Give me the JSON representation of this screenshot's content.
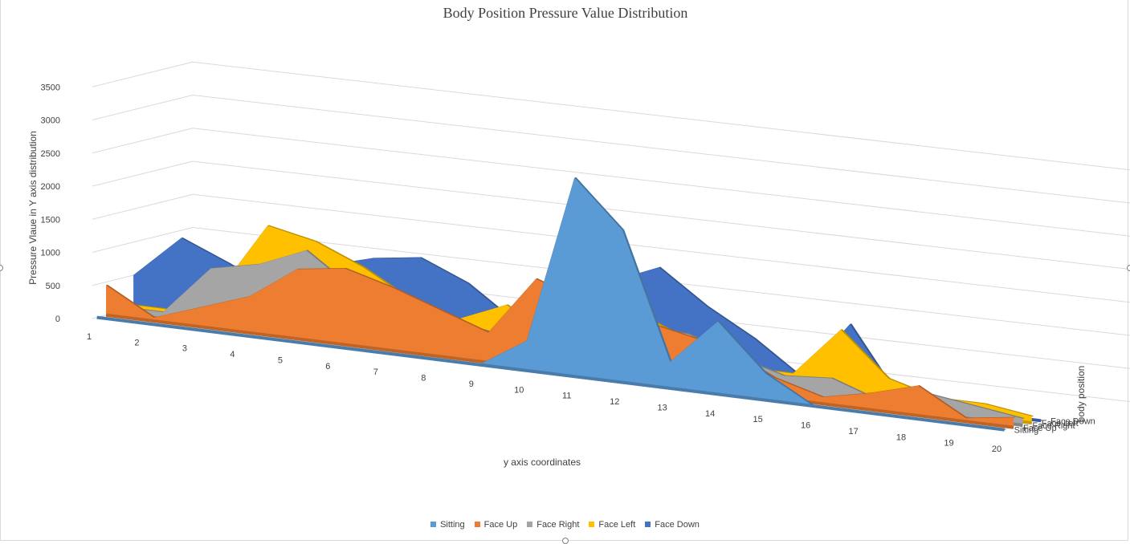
{
  "chart_data": {
    "type": "area",
    "variant": "3d-area",
    "title": "Body Position Pressure Value Distribution",
    "xlabel": "y axis coordinates",
    "ylabel": "Pressure Vlaue in Y axis distribution",
    "zlabel": "body position",
    "categories": [
      "1",
      "2",
      "3",
      "4",
      "5",
      "6",
      "7",
      "8",
      "9",
      "10",
      "11",
      "12",
      "13",
      "14",
      "15",
      "16",
      "17",
      "18",
      "19",
      "20"
    ],
    "yticks": [
      "0",
      "500",
      "1000",
      "1500",
      "2000",
      "2500",
      "3000",
      "3500"
    ],
    "ylim": [
      0,
      3500
    ],
    "grid": true,
    "legend_position": "bottom",
    "series": [
      {
        "name": "Sitting",
        "color": "#5b9bd5",
        "values": [
          0,
          0,
          0,
          0,
          0,
          0,
          0,
          0,
          0,
          450,
          3000,
          2300,
          400,
          1100,
          400,
          0,
          0,
          0,
          0,
          0
        ]
      },
      {
        "name": "Face Up",
        "color": "#ed7d31",
        "values": [
          450,
          50,
          300,
          550,
          1050,
          1150,
          950,
          700,
          450,
          1350,
          1100,
          950,
          800,
          650,
          300,
          100,
          250,
          450,
          50,
          150
        ]
      },
      {
        "name": "Face Right",
        "color": "#a5a5a5",
        "values": [
          100,
          100,
          850,
          1000,
          1300,
          800,
          700,
          500,
          400,
          300,
          1400,
          800,
          750,
          500,
          300,
          350,
          100,
          300,
          200,
          100
        ]
      },
      {
        "name": "Face Left",
        "color": "#ffc000",
        "values": [
          100,
          100,
          500,
          1550,
          1400,
          1100,
          700,
          500,
          800,
          400,
          1600,
          850,
          550,
          300,
          300,
          1050,
          400,
          200,
          200,
          100
        ]
      },
      {
        "name": "Face Down",
        "color": "#4472c4",
        "values": [
          500,
          1150,
          850,
          500,
          1000,
          1200,
          1300,
          1000,
          500,
          400,
          1300,
          1600,
          1100,
          700,
          200,
          1100,
          100,
          50,
          0,
          0
        ]
      }
    ]
  }
}
